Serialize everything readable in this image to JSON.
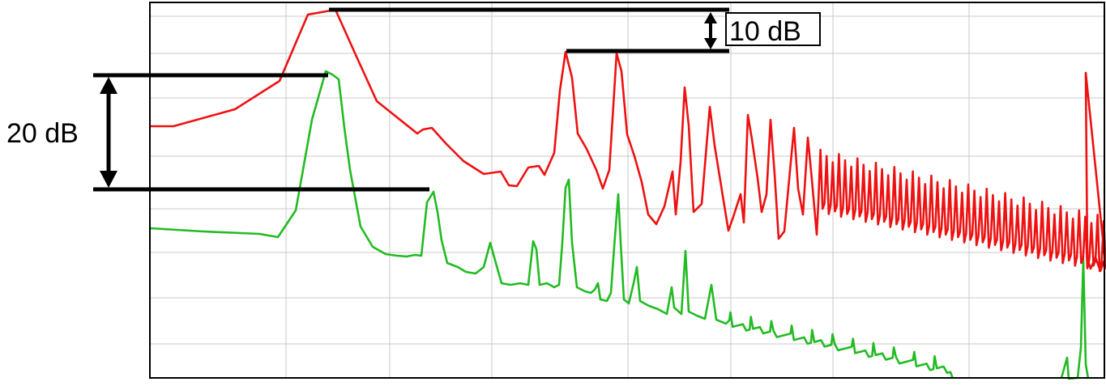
{
  "chart_data": {
    "type": "line",
    "title": "",
    "xlabel": "",
    "ylabel": "",
    "x_scale": "log",
    "grid": true,
    "legend": "none",
    "series": [
      {
        "color": "#ee1111",
        "role": "upper-trace"
      },
      {
        "color": "#22bb22",
        "role": "lower-trace"
      }
    ],
    "annotations": [
      {
        "label": "20 dB",
        "kind": "level-difference"
      },
      {
        "label": "10 dB",
        "kind": "level-difference"
      }
    ]
  },
  "colors": {
    "grid": "#c8c8c8",
    "frame": "#000000",
    "marker": "#000000",
    "label_box": "#000000"
  }
}
